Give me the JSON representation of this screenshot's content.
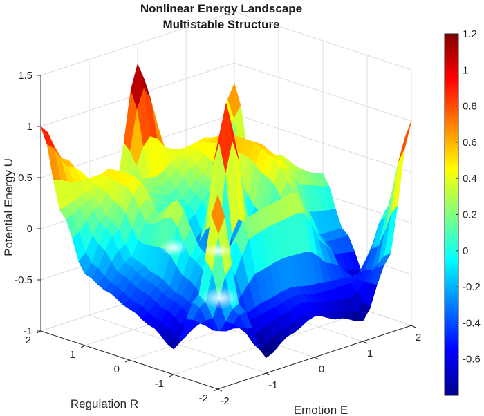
{
  "chart_data": {
    "type": "surface",
    "title_lines": [
      "Nonlinear Energy Landscape",
      "Multistable Structure"
    ],
    "xlabel": "Emotion E",
    "ylabel": "Regulation R",
    "zlabel": "Potential Energy U",
    "xlim": [
      -2,
      2
    ],
    "ylim": [
      -2,
      2
    ],
    "zlim": [
      -1,
      1.5
    ],
    "xticks": [
      "-2",
      "-1",
      "0",
      "1",
      "2"
    ],
    "yticks": [
      "-2",
      "-1",
      "0",
      "1",
      "2"
    ],
    "zticks": [
      "-1",
      "-0.5",
      "0",
      "0.5",
      "1",
      "1.5"
    ],
    "colormap": "jet",
    "colorbar": {
      "clim": [
        -0.8,
        1.2
      ],
      "ticks": [
        "-0.6",
        "-0.4",
        "-0.2",
        "0",
        "0.2",
        "0.4",
        "0.6",
        "0.8",
        "1",
        "1.2"
      ]
    },
    "grid": true,
    "surface_samples": {
      "description_of_axes": "rows = R from -2 to 2, cols = E from -2 to 2, step 0.5",
      "E": [
        -2,
        -1.5,
        -1,
        -0.5,
        0,
        0.5,
        1,
        1.5,
        2
      ],
      "R": [
        -2,
        -1.5,
        -1,
        -0.5,
        0,
        0.5,
        1,
        1.5,
        2
      ],
      "U": [
        [
          0.9,
          -0.3,
          -0.85,
          -0.7,
          -0.6,
          -0.7,
          -0.8,
          -0.3,
          1.0
        ],
        [
          -0.2,
          -0.6,
          -0.55,
          -0.5,
          -0.45,
          -0.5,
          -0.5,
          -0.5,
          0.1
        ],
        [
          -0.75,
          -0.5,
          -0.2,
          0.3,
          0.35,
          0.4,
          -0.1,
          -0.6,
          -0.7
        ],
        [
          -0.6,
          -0.4,
          0.0,
          -0.55,
          -0.6,
          -0.3,
          0.2,
          -0.3,
          -0.3
        ],
        [
          -0.5,
          -0.3,
          0.4,
          -0.7,
          1.2,
          -0.3,
          0.5,
          0.3,
          0.2
        ],
        [
          -0.4,
          -0.2,
          0.2,
          -0.2,
          -0.4,
          0.0,
          0.6,
          0.4,
          0.1
        ],
        [
          -0.3,
          0.1,
          0.5,
          0.1,
          0.0,
          0.2,
          0.6,
          0.1,
          -0.2
        ],
        [
          0.2,
          0.3,
          0.5,
          0.3,
          0.2,
          0.4,
          0.5,
          -0.1,
          -0.2
        ],
        [
          1.0,
          0.6,
          0.3,
          0.1,
          1.3,
          0.4,
          0.3,
          0.1,
          0.8
        ]
      ]
    }
  }
}
